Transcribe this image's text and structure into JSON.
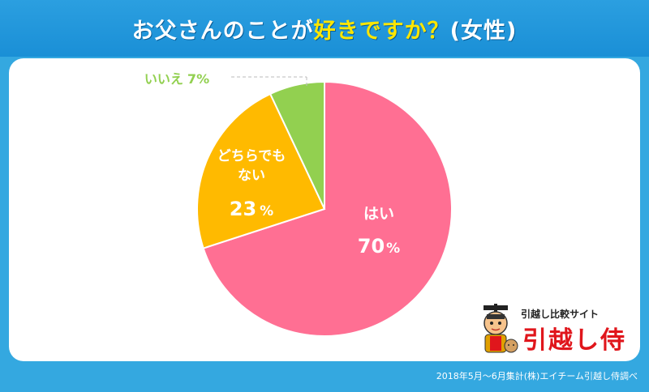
{
  "title": {
    "part1": "お父さんのことが",
    "part2": "好きですか？",
    "part3": "(女性)"
  },
  "chart_data": {
    "type": "pie",
    "title": "お父さんのことが好きですか？(女性)",
    "slices": [
      {
        "label": "はい",
        "value": 70,
        "unit": "%",
        "color": "#ff6f93"
      },
      {
        "label": "どちらでも ない",
        "label_lines": [
          "どちらでも",
          "ない"
        ],
        "value": 23,
        "unit": "%",
        "color": "#ffba00"
      },
      {
        "label": "いいえ",
        "value": 7,
        "unit": "%",
        "color": "#92d050"
      }
    ],
    "legend": "none"
  },
  "logo": {
    "subtitle": "引越し比較サイト",
    "name": "引越し侍"
  },
  "footer": "2018年5月～6月集計(株)エイチーム引越し侍調べ",
  "colors": {
    "background": "#34a8e0",
    "title_accent": "#ffe600",
    "outside_label": "#92d050"
  }
}
